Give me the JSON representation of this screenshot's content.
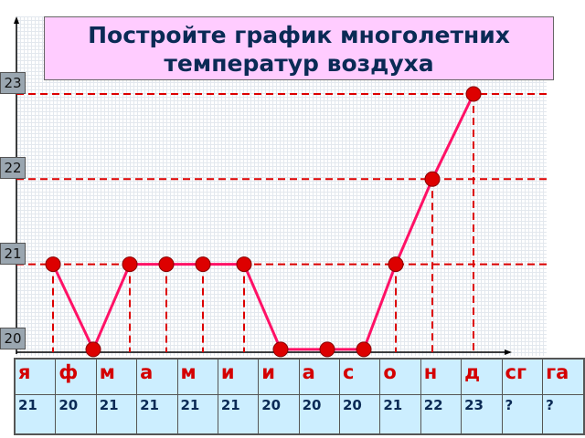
{
  "chart_data": {
    "type": "line",
    "title": "Постройте график многолетних температур воздуха",
    "categories": [
      "я",
      "ф",
      "м",
      "а",
      "м",
      "и",
      "и",
      "а",
      "с",
      "о",
      "н",
      "д"
    ],
    "values": [
      21,
      20,
      21,
      21,
      21,
      21,
      20,
      20,
      20,
      21,
      22,
      23
    ],
    "yticks": [
      "20",
      "21",
      "22",
      "23"
    ],
    "ylim": [
      20,
      23
    ],
    "line_color": "#ff1166",
    "point_color": "#dd0000",
    "guide_color": "#dd0000"
  },
  "table": {
    "months": [
      "я",
      "ф",
      "м",
      "а",
      "м",
      "и",
      "и",
      "а",
      "с",
      "о",
      "н",
      "д",
      "сг",
      "га"
    ],
    "values": [
      "21",
      "20",
      "21",
      "21",
      "21",
      "21",
      "20",
      "20",
      "20",
      "21",
      "22",
      "23",
      "?",
      "?"
    ]
  }
}
